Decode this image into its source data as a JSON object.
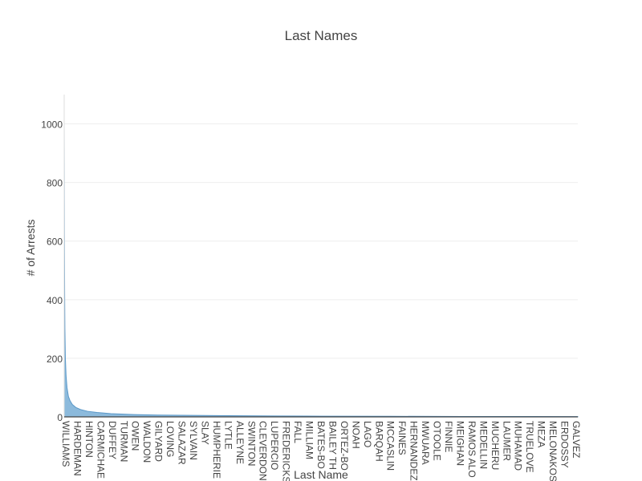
{
  "chart_data": {
    "type": "area",
    "title": "Last Names",
    "xlabel": "Last Name",
    "ylabel": "# of Arrests",
    "ylim": [
      0,
      1100
    ],
    "y_ticks": [
      0,
      200,
      400,
      600,
      800,
      1000
    ],
    "grid": true,
    "legend": "none",
    "color": "#7fb3d8",
    "line_color": "#5a98c8",
    "x_tick_labels": [
      "WILLIAMS",
      "HARDEMAN",
      "HINTON",
      "CARMICHAE",
      "DUFFEY",
      "TURMAN",
      "OWEN",
      "WALDON",
      "GILYARD",
      "LOVING",
      "SALAZAR",
      "SYLVAIN",
      "SLAY",
      "HUMPHERIE",
      "LYTLE",
      "ALLEYNE",
      "SWINTON",
      "CLEVERDON",
      "LUPERCIO",
      "FREDERICKS",
      "FALL",
      "MILLIAM",
      "BATES-BO",
      "BAILEY TH",
      "ORTEZ-BO",
      "NOAH",
      "LAGO",
      "BARQAH",
      "MCCASLIN",
      "FAINES",
      "HERNANDEZ",
      "MWUARA",
      "OTOOLE",
      "FINNIE",
      "MEIGHAN",
      "RAMOS ALO",
      "MEDELLIN",
      "MUCHERU",
      "LAUMER",
      "MUHAMAD",
      "TRUELOVE",
      "MEZA",
      "MELONAKOS",
      "ERDOSSY",
      "GALVEZ"
    ],
    "x_count": 2200,
    "series": [
      {
        "x_index": [
          0,
          1,
          2,
          3,
          5,
          8,
          12,
          18,
          25,
          35,
          50,
          70,
          100,
          140,
          200,
          300,
          400,
          550,
          700,
          900,
          1100,
          1400,
          1700,
          2000,
          2199
        ],
        "values": [
          1010,
          620,
          420,
          300,
          200,
          140,
          100,
          70,
          55,
          42,
          32,
          25,
          19,
          15,
          11,
          8,
          6,
          5,
          4,
          3,
          2.5,
          2,
          1.5,
          1.2,
          1
        ]
      }
    ]
  }
}
